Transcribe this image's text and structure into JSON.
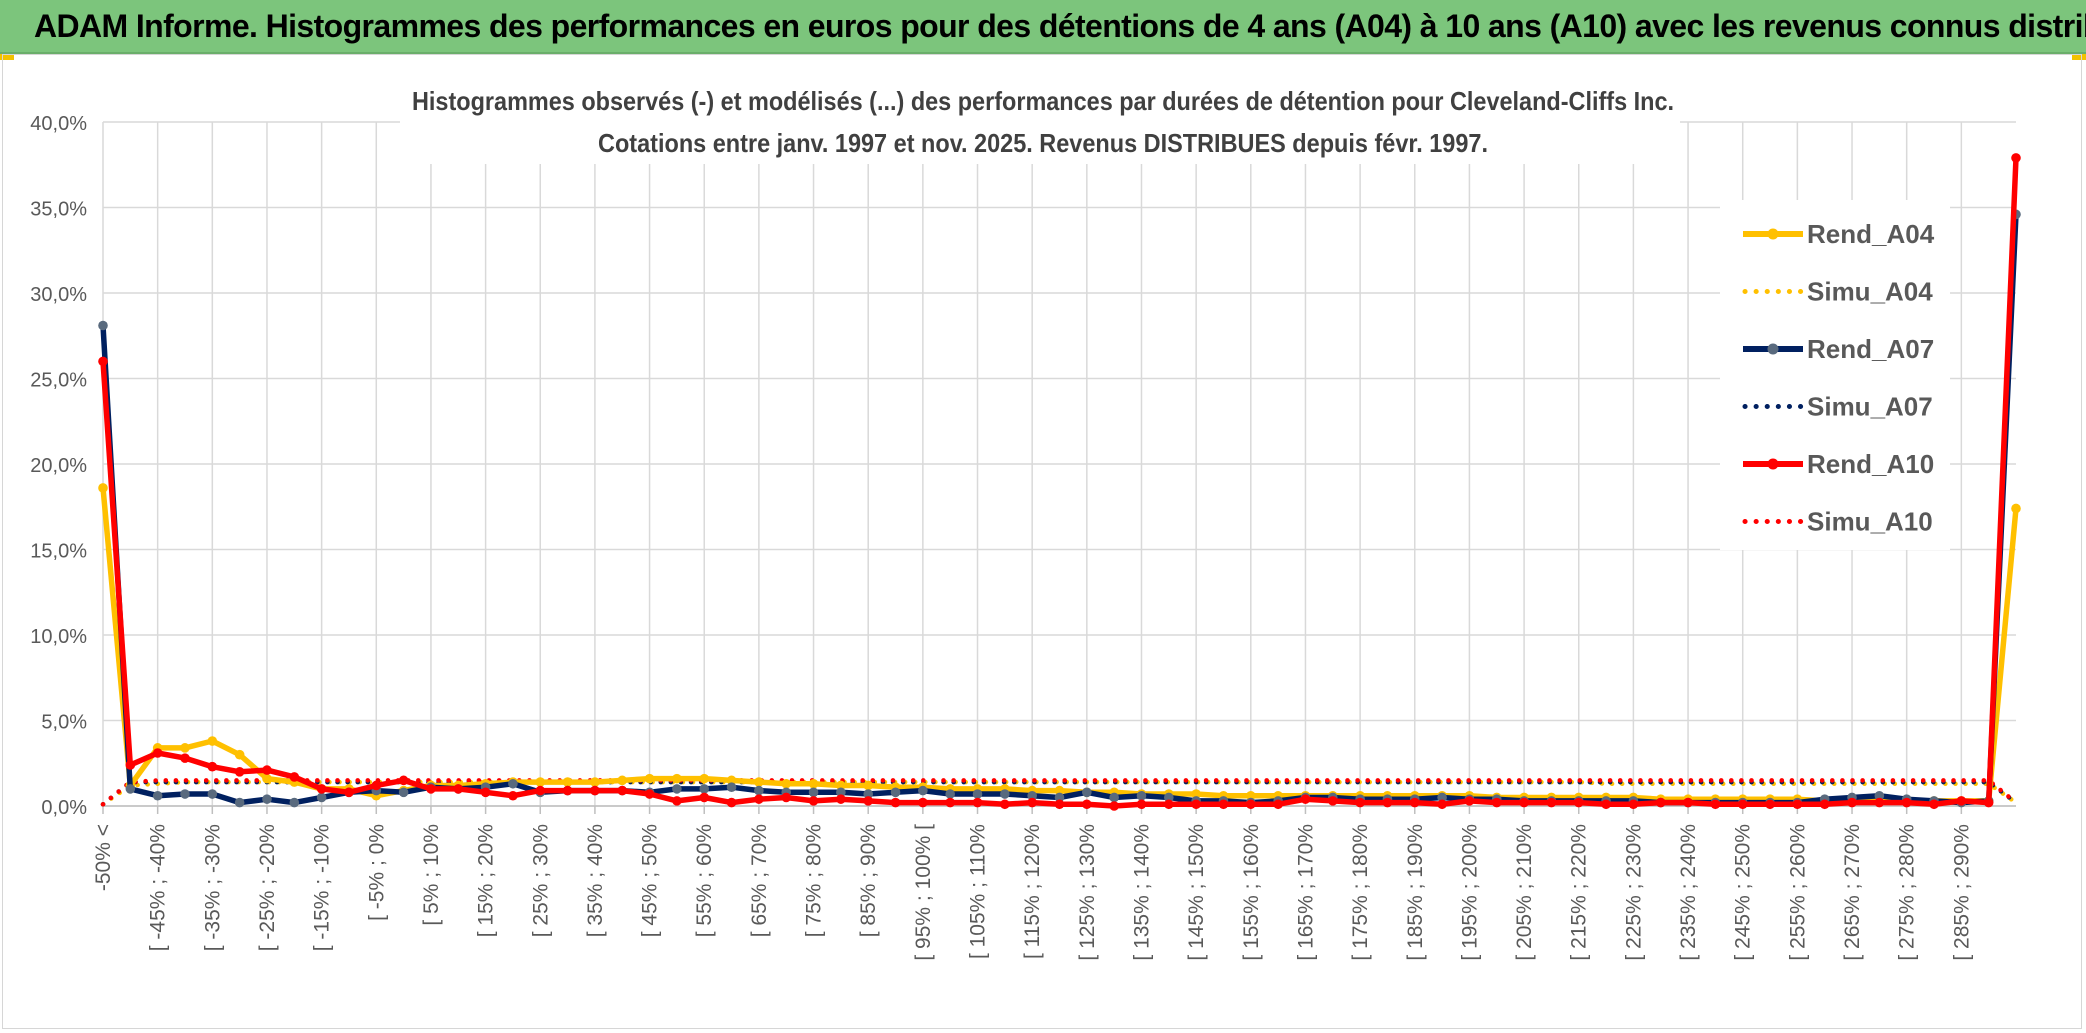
{
  "banner": {
    "title": "ADAM Informe. Histogrammes des performances en euros pour des détentions de 4 ans (A04) à 10 ans (A10) avec les revenus connus distribués"
  },
  "colors": {
    "banner_bg": "#7cc57c",
    "rend_a04": "#FFC000",
    "rend_a07": "#002060",
    "rend_a10": "#FF0000",
    "marker_a04": "#FFC000",
    "marker_a07": "#596A7E",
    "marker_a10": "#FF0000",
    "grid": "#D9D9D9",
    "text": "#595959"
  },
  "chart_data": {
    "type": "line",
    "title_lines": [
      "Histogrammes observés (-) et modélisés (...) des performances par durées de détention pour Cleveland-Cliffs Inc.",
      "Cotations entre janv. 1997 et nov. 2025. Revenus DISTRIBUES depuis févr. 1997."
    ],
    "ylim": [
      0,
      40
    ],
    "yticks": [
      0,
      5,
      10,
      15,
      20,
      25,
      30,
      35,
      40
    ],
    "ytick_labels": [
      "0,0%",
      "5,0%",
      "10,0%",
      "15,0%",
      "20,0%",
      "25,0%",
      "30,0%",
      "35,0%",
      "40,0%"
    ],
    "grid": true,
    "legend_position": "top-right",
    "categories": [
      "-50% <",
      "[ -50% ; -45%",
      "[ -45% ; -40%",
      "[ -40% ; -35%",
      "[ -35% ; -30%",
      "[ -30% ; -25%",
      "[ -25% ; -20%",
      "[ -20% ; -15%",
      "[ -15% ; -10%",
      "[ -10% ; -5%",
      "[ -5% ; 0%",
      "[ 0% ; 5%",
      "[ 5% ; 10%",
      "[ 10% ; 15%",
      "[ 15% ; 20%",
      "[ 20% ; 25%",
      "[ 25% ; 30%",
      "[ 30% ; 35%",
      "[ 35% ; 40%",
      "[ 40% ; 45%",
      "[ 45% ; 50%",
      "[ 50% ; 55%",
      "[ 55% ; 60%",
      "[ 60% ; 65%",
      "[ 65% ; 70%",
      "[ 70% ; 75%",
      "[ 75% ; 80%",
      "[ 80% ; 85%",
      "[ 85% ; 90%",
      "[ 90% ; 95%",
      "[ 95% ; 100% [",
      "[ 100% ; 105%",
      "[ 105% ; 110%",
      "[ 110% ; 115%",
      "[ 115% ; 120%",
      "[ 120% ; 125%",
      "[ 125% ; 130%",
      "[ 130% ; 135%",
      "[ 135% ; 140%",
      "[ 140% ; 145%",
      "[ 145% ; 150%",
      "[ 150% ; 155%",
      "[ 155% ; 160%",
      "[ 160% ; 165%",
      "[ 165% ; 170%",
      "[ 170% ; 175%",
      "[ 175% ; 180%",
      "[ 180% ; 185%",
      "[ 185% ; 190%",
      "[ 190% ; 195%",
      "[ 195% ; 200%",
      "[ 200% ; 205%",
      "[ 205% ; 210%",
      "[ 210% ; 215%",
      "[ 215% ; 220%",
      "[ 220% ; 225%",
      "[ 225% ; 230%",
      "[ 230% ; 235%",
      "[ 235% ; 240%",
      "[ 240% ; 245%",
      "[ 245% ; 250%",
      "[ 250% ; 255%",
      "[ 255% ; 260%",
      "[ 260% ; 265%",
      "[ 265% ; 270%",
      "[ 270% ; 275%",
      "[ 275% ; 280%",
      "[ 280% ; 285%",
      "[ 285% ; 290%",
      "[ 290% ; 295%",
      "[ 295% ; 300%"
    ],
    "shown_tick_labels": [
      "-50% <",
      "[ -45% ; -40%",
      "[ -35% ; -30%",
      "[ -25% ; -20%",
      "[ -15% ; -10%",
      "[ -5% ; 0%",
      "[ 5% ; 10%",
      "[ 15% ; 20%",
      "[ 25% ; 30%",
      "[ 35% ; 40%",
      "[ 45% ; 50%",
      "[ 55% ; 60%",
      "[ 65% ; 70%",
      "[ 75% ; 80%",
      "[ 85% ; 90%",
      "[ 95% ; 100% [",
      "[ 105% ; 110%",
      "[ 115% ; 120%",
      "[ 125% ; 130%",
      "[ 135% ; 140%",
      "[ 145% ; 150%",
      "[ 155% ; 160%",
      "[ 165% ; 170%",
      "[ 175% ; 180%",
      "[ 185% ; 190%",
      "[ 195% ; 200%",
      "[ 205% ; 210%",
      "[ 215% ; 220%",
      "[ 225% ; 230%",
      "[ 235% ; 240%",
      "[ 245% ; 250%",
      "[ 255% ; 260%",
      "[ 265% ; 270%",
      "[ 275% ; 280%",
      "[ 285% ; 290%"
    ],
    "series": [
      {
        "name": "Rend_A04",
        "style": "solid",
        "color": "#FFC000",
        "values": [
          18.6,
          1.2,
          3.4,
          3.4,
          3.8,
          3.0,
          1.6,
          1.4,
          1.0,
          1.0,
          0.6,
          0.9,
          1.2,
          1.2,
          1.3,
          1.4,
          1.4,
          1.4,
          1.4,
          1.5,
          1.6,
          1.6,
          1.6,
          1.5,
          1.4,
          1.3,
          1.3,
          1.2,
          1.2,
          1.1,
          1.1,
          1.0,
          1.0,
          1.0,
          0.9,
          0.9,
          0.8,
          0.8,
          0.7,
          0.7,
          0.7,
          0.6,
          0.6,
          0.6,
          0.6,
          0.6,
          0.6,
          0.6,
          0.6,
          0.6,
          0.6,
          0.5,
          0.5,
          0.5,
          0.5,
          0.5,
          0.5,
          0.4,
          0.4,
          0.4,
          0.4,
          0.4,
          0.4,
          0.3,
          0.3,
          0.3,
          0.3,
          0.3,
          0.3,
          0.3,
          17.4
        ]
      },
      {
        "name": "Simu_A04",
        "style": "dotted",
        "color": "#FFC000",
        "values": [
          0.1,
          1.2,
          1.3,
          1.4,
          1.4,
          1.4,
          1.4,
          1.4,
          1.4,
          1.4,
          1.4,
          1.4,
          1.4,
          1.4,
          1.4,
          1.4,
          1.4,
          1.4,
          1.4,
          1.4,
          1.4,
          1.4,
          1.4,
          1.4,
          1.4,
          1.4,
          1.4,
          1.4,
          1.4,
          1.4,
          1.4,
          1.4,
          1.4,
          1.4,
          1.4,
          1.4,
          1.4,
          1.4,
          1.4,
          1.4,
          1.4,
          1.4,
          1.4,
          1.4,
          1.4,
          1.4,
          1.4,
          1.4,
          1.4,
          1.4,
          1.4,
          1.4,
          1.4,
          1.4,
          1.4,
          1.3,
          1.3,
          1.3,
          1.3,
          1.3,
          1.3,
          1.3,
          1.3,
          1.3,
          1.3,
          1.3,
          1.3,
          1.3,
          1.3,
          1.3,
          0.2
        ]
      },
      {
        "name": "Rend_A07",
        "style": "solid",
        "color": "#002060",
        "values": [
          28.1,
          1.0,
          0.6,
          0.7,
          0.7,
          0.2,
          0.4,
          0.2,
          0.5,
          0.8,
          0.9,
          0.8,
          1.1,
          1.0,
          1.1,
          1.3,
          0.8,
          0.9,
          0.9,
          0.9,
          0.8,
          1.0,
          1.0,
          1.1,
          0.9,
          0.8,
          0.8,
          0.8,
          0.7,
          0.8,
          0.9,
          0.7,
          0.7,
          0.7,
          0.6,
          0.5,
          0.8,
          0.5,
          0.6,
          0.5,
          0.3,
          0.3,
          0.2,
          0.3,
          0.5,
          0.5,
          0.4,
          0.4,
          0.4,
          0.5,
          0.4,
          0.4,
          0.3,
          0.3,
          0.3,
          0.3,
          0.3,
          0.2,
          0.2,
          0.2,
          0.2,
          0.2,
          0.2,
          0.4,
          0.5,
          0.6,
          0.4,
          0.3,
          0.2,
          0.3,
          34.6
        ]
      },
      {
        "name": "Simu_A07",
        "style": "dotted",
        "color": "#002060",
        "values": [
          0.1,
          1.4,
          1.4,
          1.4,
          1.4,
          1.4,
          1.4,
          1.4,
          1.4,
          1.4,
          1.4,
          1.4,
          1.4,
          1.4,
          1.4,
          1.4,
          1.4,
          1.4,
          1.4,
          1.4,
          1.4,
          1.4,
          1.4,
          1.4,
          1.4,
          1.4,
          1.4,
          1.4,
          1.4,
          1.4,
          1.4,
          1.4,
          1.4,
          1.4,
          1.4,
          1.4,
          1.4,
          1.4,
          1.4,
          1.4,
          1.4,
          1.4,
          1.4,
          1.4,
          1.4,
          1.4,
          1.4,
          1.4,
          1.4,
          1.4,
          1.4,
          1.4,
          1.4,
          1.4,
          1.4,
          1.4,
          1.4,
          1.4,
          1.4,
          1.4,
          1.4,
          1.4,
          1.4,
          1.4,
          1.4,
          1.4,
          1.4,
          1.4,
          1.4,
          1.4,
          0.2
        ]
      },
      {
        "name": "Rend_A10",
        "style": "solid",
        "color": "#FF0000",
        "values": [
          26.0,
          2.4,
          3.1,
          2.8,
          2.3,
          2.0,
          2.1,
          1.7,
          1.0,
          0.8,
          1.2,
          1.5,
          1.0,
          1.0,
          0.8,
          0.6,
          0.9,
          0.9,
          0.9,
          0.9,
          0.7,
          0.3,
          0.5,
          0.2,
          0.4,
          0.5,
          0.3,
          0.4,
          0.3,
          0.2,
          0.2,
          0.2,
          0.2,
          0.1,
          0.2,
          0.1,
          0.1,
          0.0,
          0.1,
          0.1,
          0.1,
          0.1,
          0.1,
          0.1,
          0.4,
          0.3,
          0.2,
          0.2,
          0.2,
          0.1,
          0.3,
          0.2,
          0.2,
          0.2,
          0.2,
          0.1,
          0.1,
          0.2,
          0.2,
          0.1,
          0.1,
          0.1,
          0.1,
          0.1,
          0.2,
          0.2,
          0.2,
          0.1,
          0.3,
          0.2,
          37.9
        ]
      },
      {
        "name": "Simu_A10",
        "style": "dotted",
        "color": "#FF0000",
        "values": [
          0.1,
          1.4,
          1.5,
          1.5,
          1.5,
          1.5,
          1.5,
          1.5,
          1.5,
          1.5,
          1.5,
          1.5,
          1.5,
          1.5,
          1.5,
          1.5,
          1.5,
          1.5,
          1.5,
          1.5,
          1.5,
          1.5,
          1.5,
          1.5,
          1.5,
          1.5,
          1.5,
          1.5,
          1.5,
          1.5,
          1.5,
          1.5,
          1.5,
          1.5,
          1.5,
          1.5,
          1.5,
          1.5,
          1.5,
          1.5,
          1.5,
          1.5,
          1.5,
          1.5,
          1.5,
          1.5,
          1.5,
          1.5,
          1.5,
          1.5,
          1.5,
          1.5,
          1.5,
          1.5,
          1.5,
          1.5,
          1.5,
          1.5,
          1.5,
          1.5,
          1.5,
          1.5,
          1.5,
          1.5,
          1.5,
          1.5,
          1.5,
          1.5,
          1.5,
          1.5,
          0.2
        ]
      }
    ]
  }
}
